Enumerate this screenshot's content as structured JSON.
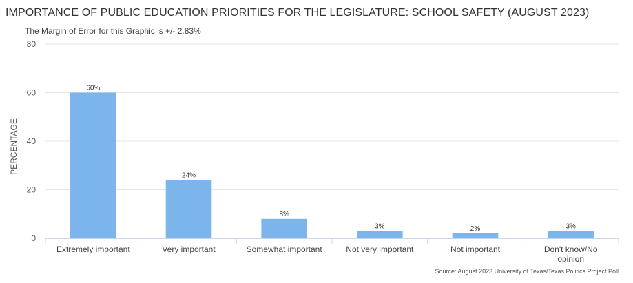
{
  "header": {
    "title": "IMPORTANCE OF PUBLIC EDUCATION PRIORITIES FOR THE LEGISLATURE: SCHOOL SAFETY (AUGUST 2023)",
    "subtitle": "The Margin of Error for this Graphic is +/- 2.83%"
  },
  "footer": {
    "source": "Source: August 2023 University of Texas/Texas Politics Project Poll"
  },
  "colors": {
    "bar": "#7cb5ec",
    "grid": "#e6e6e6",
    "axis": "#ccd6eb"
  },
  "chart_data": {
    "type": "bar",
    "title": "IMPORTANCE OF PUBLIC EDUCATION PRIORITIES FOR THE LEGISLATURE: SCHOOL SAFETY (AUGUST 2023)",
    "xlabel": "",
    "ylabel": "PERCENTAGE",
    "ylim": [
      0,
      80
    ],
    "yticks": [
      0,
      20,
      40,
      60,
      80
    ],
    "grid": true,
    "categories": [
      [
        "Extremely important"
      ],
      [
        "Very important"
      ],
      [
        "Somewhat important"
      ],
      [
        "Not very important"
      ],
      [
        "Not important"
      ],
      [
        "Don't know/No",
        "opinion"
      ]
    ],
    "values": [
      60,
      24,
      8,
      3,
      2,
      3
    ],
    "data_labels": [
      "60%",
      "24%",
      "8%",
      "3%",
      "2%",
      "3%"
    ]
  }
}
